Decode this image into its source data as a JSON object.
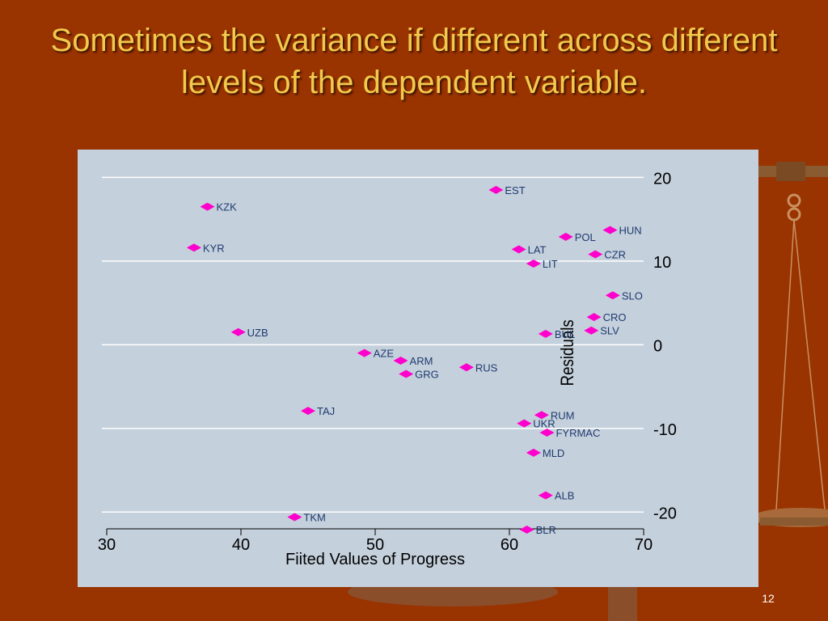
{
  "slide": {
    "title": "Sometimes the variance if different across different levels of the dependent variable.",
    "number": "12",
    "background_color": "#993300",
    "title_color": "#f2c94c"
  },
  "chart_data": {
    "type": "scatter",
    "xlabel": "Fiited Values of Progress",
    "ylabel": "Residuals",
    "xlim": [
      30,
      70
    ],
    "ylim": [
      -22,
      21
    ],
    "x_ticks": [
      30,
      40,
      50,
      60,
      70
    ],
    "y_ticks": [
      20,
      10,
      0,
      -10,
      -20
    ],
    "grid": "horizontal",
    "y_axis_position": "right",
    "marker_color": "#ff00cc",
    "label_color": "#1f3a6e",
    "panel_color": "#c4d0dc",
    "points": [
      {
        "label": "EST",
        "x": 59.0,
        "y": 18.5
      },
      {
        "label": "KZK",
        "x": 37.5,
        "y": 16.5
      },
      {
        "label": "HUN",
        "x": 67.5,
        "y": 13.7
      },
      {
        "label": "POL",
        "x": 64.2,
        "y": 12.9
      },
      {
        "label": "KYR",
        "x": 36.5,
        "y": 11.6
      },
      {
        "label": "LAT",
        "x": 60.7,
        "y": 11.4
      },
      {
        "label": "CZR",
        "x": 66.4,
        "y": 10.8
      },
      {
        "label": "LIT",
        "x": 61.8,
        "y": 9.7
      },
      {
        "label": "SLO",
        "x": 67.7,
        "y": 5.9
      },
      {
        "label": "CRO",
        "x": 66.3,
        "y": 3.3
      },
      {
        "label": "SLV",
        "x": 66.1,
        "y": 1.7
      },
      {
        "label": "UZB",
        "x": 39.8,
        "y": 1.5
      },
      {
        "label": "BUL",
        "x": 62.7,
        "y": 1.3
      },
      {
        "label": "AZE",
        "x": 49.2,
        "y": -1.0
      },
      {
        "label": "ARM",
        "x": 51.9,
        "y": -1.9
      },
      {
        "label": "RUS",
        "x": 56.8,
        "y": -2.7
      },
      {
        "label": "GRG",
        "x": 52.3,
        "y": -3.5
      },
      {
        "label": "TAJ",
        "x": 45.0,
        "y": -7.9
      },
      {
        "label": "RUM",
        "x": 62.4,
        "y": -8.4
      },
      {
        "label": "UKR",
        "x": 61.1,
        "y": -9.4
      },
      {
        "label": "FYRMAC",
        "x": 62.8,
        "y": -10.5
      },
      {
        "label": "MLD",
        "x": 61.8,
        "y": -12.9
      },
      {
        "label": "ALB",
        "x": 62.7,
        "y": -18.0
      },
      {
        "label": "TKM",
        "x": 44.0,
        "y": -20.6
      },
      {
        "label": "BLR",
        "x": 61.3,
        "y": -22.1
      }
    ]
  }
}
